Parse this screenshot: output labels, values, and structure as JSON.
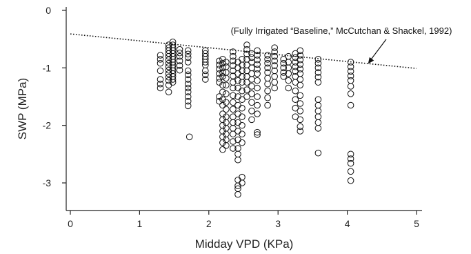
{
  "chart_data": {
    "type": "scatter",
    "title": "",
    "xlabel": "Midday VPD (KPa)",
    "ylabel": "SWP (MPa)",
    "xlim": [
      -0.1,
      5.1
    ],
    "ylim": [
      -3.5,
      0.05
    ],
    "xticks": [
      0,
      1,
      2,
      3,
      4,
      5
    ],
    "xtick_labels": [
      "0",
      "1",
      "2",
      "3",
      "4",
      "5"
    ],
    "yticks": [
      0,
      -1,
      -2,
      -3
    ],
    "ytick_labels": [
      "0",
      "-1",
      "-2",
      "-3"
    ],
    "grid": false,
    "legend": "none",
    "baseline": {
      "name": "Fully Irrigated Baseline",
      "style": "dotted",
      "points": [
        [
          0,
          -0.41
        ],
        [
          5,
          -1.01
        ]
      ]
    },
    "annotation": {
      "text": "(Fully Irrigated “Baseline,” McCutchan & Shackel, 1992)",
      "arrow_target": [
        4.3,
        -0.93
      ]
    },
    "marker": "open-circle",
    "columns": [
      {
        "x": 1.3,
        "y": [
          -0.78,
          -0.85,
          -0.92,
          -1.05,
          -1.2,
          -1.28,
          -1.35
        ]
      },
      {
        "x": 1.42,
        "y": [
          -0.6,
          -0.65,
          -0.7,
          -0.75,
          -0.8,
          -0.86,
          -0.92,
          -0.98,
          -1.04,
          -1.1,
          -1.16,
          -1.22,
          -1.3,
          -1.42
        ]
      },
      {
        "x": 1.48,
        "y": [
          -0.55,
          -0.6,
          -0.65,
          -0.7,
          -0.75,
          -0.8,
          -0.85,
          -0.9,
          -0.95,
          -1.0,
          -1.05,
          -1.1,
          -1.15,
          -1.2,
          -1.25
        ]
      },
      {
        "x": 1.58,
        "y": [
          -0.68,
          -0.74,
          -0.8,
          -0.88,
          -0.96,
          -1.04
        ]
      },
      {
        "x": 1.7,
        "y": [
          -0.7,
          -0.76,
          -0.82,
          -0.9,
          -1.05,
          -1.12,
          -1.2,
          -1.28,
          -1.35,
          -1.42,
          -1.5,
          -1.58,
          -1.66
        ]
      },
      {
        "x": 1.72,
        "y": [
          -2.2
        ]
      },
      {
        "x": 1.95,
        "y": [
          -0.7,
          -0.75,
          -0.8,
          -0.85,
          -0.9,
          -0.95,
          -1.05,
          -1.12,
          -1.2
        ]
      },
      {
        "x": 2.15,
        "y": [
          -0.88,
          -0.95,
          -1.02,
          -1.1,
          -1.18,
          -1.25,
          -1.5,
          -1.58
        ]
      },
      {
        "x": 2.2,
        "y": [
          -0.85,
          -0.92,
          -1.0,
          -1.08,
          -1.15,
          -1.3,
          -1.42,
          -1.55,
          -1.65,
          -1.8,
          -1.9,
          -2.0,
          -2.1,
          -2.2,
          -2.3,
          -2.42
        ]
      },
      {
        "x": 2.25,
        "y": [
          -0.9,
          -0.98,
          -1.08,
          -1.18,
          -1.3,
          -1.45,
          -1.6,
          -1.72,
          -1.85,
          -1.95,
          -2.05,
          -2.15,
          -2.25,
          -2.35
        ]
      },
      {
        "x": 2.35,
        "y": [
          -0.72,
          -0.8,
          -0.88,
          -0.96,
          -1.05,
          -1.14,
          -1.25,
          -1.35,
          -1.48,
          -1.6,
          -1.72,
          -1.85,
          -1.95,
          -2.05,
          -2.15,
          -2.28,
          -2.4
        ]
      },
      {
        "x": 2.42,
        "y": [
          -0.9,
          -1.0,
          -1.1,
          -1.22,
          -1.35,
          -1.5,
          -1.65,
          -1.8,
          -1.95,
          -2.1,
          -2.25,
          -2.4,
          -2.5,
          -2.6,
          -2.95,
          -3.05,
          -3.1,
          -3.2
        ]
      },
      {
        "x": 2.48,
        "y": [
          -0.85,
          -0.95,
          -1.05,
          -1.15,
          -1.25,
          -1.4,
          -1.55,
          -1.7,
          -1.85,
          -2.0,
          -2.15,
          -2.3,
          -2.9,
          -3.0
        ]
      },
      {
        "x": 2.55,
        "y": [
          -0.6,
          -0.68,
          -0.76,
          -0.85,
          -0.95,
          -1.05,
          -1.15,
          -1.25,
          -1.38,
          -1.5
        ]
      },
      {
        "x": 2.62,
        "y": [
          -0.75,
          -0.82,
          -0.9,
          -1.0,
          -1.1,
          -1.2,
          -1.32,
          -1.45,
          -1.6,
          -1.75,
          -1.9
        ]
      },
      {
        "x": 2.7,
        "y": [
          -0.7,
          -0.78,
          -0.86,
          -0.94,
          -1.02,
          -1.1,
          -1.22,
          -1.35,
          -1.5,
          -1.65,
          -1.8,
          -2.12,
          -2.16
        ]
      },
      {
        "x": 2.85,
        "y": [
          -0.78,
          -0.85,
          -0.92,
          -1.0,
          -1.08,
          -1.18,
          -1.28,
          -1.4,
          -1.52,
          -1.65
        ]
      },
      {
        "x": 2.95,
        "y": [
          -0.65,
          -0.72,
          -0.8,
          -0.88,
          -0.96,
          -1.05,
          -1.15,
          -1.25,
          -1.35
        ]
      },
      {
        "x": 3.08,
        "y": [
          -0.85,
          -0.92,
          -1.0,
          -1.08,
          -1.15
        ]
      },
      {
        "x": 3.15,
        "y": [
          -0.8,
          -0.9,
          -1.0,
          -1.1,
          -1.22,
          -1.35
        ]
      },
      {
        "x": 3.25,
        "y": [
          -0.75,
          -0.82,
          -0.9,
          -0.98,
          -1.06,
          -1.15,
          -1.25,
          -1.4,
          -1.55,
          -1.7,
          -1.85
        ]
      },
      {
        "x": 3.32,
        "y": [
          -0.7,
          -0.78,
          -0.86,
          -0.94,
          -1.02,
          -1.1,
          -1.2,
          -1.3,
          -1.48,
          -1.62,
          -1.75,
          -1.9,
          -2.02,
          -2.1
        ]
      },
      {
        "x": 3.58,
        "y": [
          -0.85,
          -0.92,
          -1.0,
          -1.08,
          -1.16,
          -1.25,
          -1.55,
          -1.65,
          -1.75,
          -1.85,
          -1.95,
          -2.05,
          -2.48
        ]
      },
      {
        "x": 4.05,
        "y": [
          -0.9,
          -0.98,
          -1.06,
          -1.14,
          -1.22,
          -1.32,
          -1.45,
          -1.65,
          -2.5,
          -2.58,
          -2.66,
          -2.8,
          -2.96
        ]
      }
    ]
  }
}
